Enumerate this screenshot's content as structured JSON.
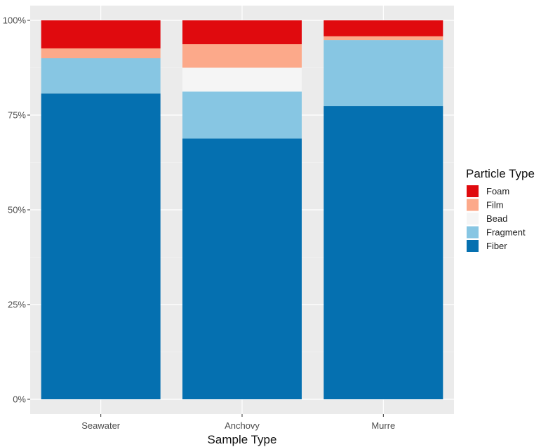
{
  "chart_data": {
    "type": "bar",
    "stacked": true,
    "percent_scale": true,
    "categories": [
      "Seawater",
      "Anchovy",
      "Murre"
    ],
    "series": [
      {
        "name": "Fiber",
        "color": "#0570b0",
        "values": [
          80.7,
          68.8,
          77.4
        ]
      },
      {
        "name": "Fragment",
        "color": "#87c6e3",
        "values": [
          9.3,
          12.4,
          17.4
        ]
      },
      {
        "name": "Bead",
        "color": "#f5f5f5",
        "values": [
          0.0,
          6.3,
          0.0
        ]
      },
      {
        "name": "Film",
        "color": "#fca98a",
        "values": [
          2.6,
          6.2,
          1.0
        ]
      },
      {
        "name": "Foam",
        "color": "#e00a0e",
        "values": [
          7.4,
          6.3,
          4.2
        ]
      }
    ],
    "xlabel": "Sample Type",
    "ylabel": "",
    "ylim": [
      0,
      100
    ],
    "y_ticks": [
      "0%",
      "25%",
      "50%",
      "75%",
      "100%"
    ],
    "y_tick_values": [
      0,
      25,
      50,
      75,
      100
    ],
    "grid": true,
    "panel_background": "#ebebeb",
    "legend": {
      "title": "Particle Type",
      "placement": "right",
      "order": [
        "Foam",
        "Film",
        "Bead",
        "Fragment",
        "Fiber"
      ]
    }
  }
}
